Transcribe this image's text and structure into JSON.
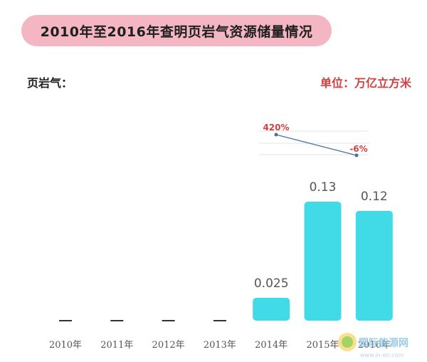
{
  "title": "2010年至2016年查明页岩气资源储量情况",
  "ylabel": "页岩气：",
  "unit": "单位：万亿立方米",
  "chart_data": {
    "type": "bar",
    "title": "2010年至2016年查明页岩气资源储量情况",
    "ylabel": "页岩气",
    "unit": "万亿立方米",
    "categories": [
      "2010年",
      "2011年",
      "2012年",
      "2013年",
      "2014年",
      "2015年",
      "2016年"
    ],
    "values": [
      null,
      null,
      null,
      null,
      0.025,
      0.13,
      0.12
    ],
    "value_labels": [
      "—",
      "—",
      "—",
      "—",
      "0.025",
      "0.13",
      "0.12"
    ],
    "growth": {
      "categories": [
        "2015年",
        "2016年"
      ],
      "labels": [
        "420%",
        "-6%"
      ],
      "values": [
        420,
        -6
      ]
    },
    "ylim": [
      0,
      0.13
    ],
    "grid": false,
    "bar_color": "#40dbe6"
  },
  "watermark": {
    "text": "国际能源网",
    "url": "www.in-en.com"
  },
  "colors": {
    "bar": "#40dbe6",
    "accent": "#d44040",
    "title_bg": "#f4b6c2",
    "line": "#4a6fa5"
  }
}
